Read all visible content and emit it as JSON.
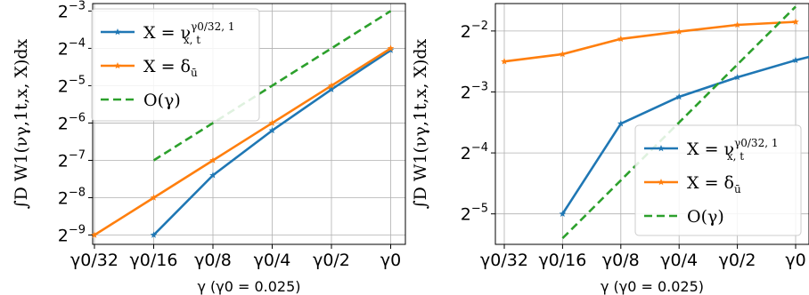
{
  "chart_data": [
    {
      "type": "line",
      "x_categories": [
        "γ0/32",
        "γ0/16",
        "γ0/8",
        "γ0/4",
        "γ0/2",
        "γ0"
      ],
      "xlabel": "γ (γ0 = 0.025)",
      "ylabel": "∫D W1(νγ,1t,x, X)dx",
      "y_scale": "log2",
      "y_tick_exponents": [
        -9,
        -8,
        -7,
        -6,
        -5,
        -4,
        -3
      ],
      "ylim_log2": [
        -9.25,
        -2.8
      ],
      "grid": true,
      "legend_position": "top-left",
      "series": [
        {
          "name": "X = ν^{γ0/32,1}_{x,t}",
          "label_main": "X = ν",
          "label_sup": "γ0/32, 1",
          "label_sub": "x, t",
          "color": "#1f77b4",
          "style": "solid",
          "marker": "star",
          "x_index": [
            1,
            2,
            3,
            4,
            5
          ],
          "log2_values": [
            -9.0,
            -7.4,
            -6.2,
            -5.1,
            -4.05
          ]
        },
        {
          "name": "X = δ_ū",
          "label_main": "X = δ",
          "label_sub": "ū",
          "color": "#ff7f0e",
          "style": "solid",
          "marker": "star",
          "x_index": [
            0,
            1,
            2,
            3,
            4,
            5
          ],
          "log2_values": [
            -9.0,
            -8.0,
            -7.0,
            -6.0,
            -5.0,
            -4.0
          ]
        },
        {
          "name": "O(γ)",
          "label_main": "O(γ)",
          "color": "#2ca02c",
          "style": "dashed",
          "marker": "none",
          "x_index": [
            1,
            5
          ],
          "log2_values": [
            -7.0,
            -3.0
          ]
        }
      ]
    },
    {
      "type": "line",
      "x_categories": [
        "γ0/32",
        "γ0/16",
        "γ0/8",
        "γ0/4",
        "γ0/2",
        "γ0"
      ],
      "xlabel": "γ (γ0 = 0.025)",
      "ylabel": "∫D W1(νγ,1t,x, X)dx",
      "y_scale": "log2",
      "y_tick_exponents": [
        -5,
        -4,
        -3,
        -2
      ],
      "ylim_log2": [
        -5.5,
        -1.55
      ],
      "grid": true,
      "legend_position": "bottom-right",
      "series": [
        {
          "name": "X = ν^{γ0/32,1}_{x,t}",
          "label_main": "X = ν",
          "label_sup": "γ0/32, 1",
          "label_sub": "x, t",
          "color": "#1f77b4",
          "style": "solid",
          "marker": "star",
          "x_index": [
            1,
            2,
            3,
            4,
            5,
            6
          ],
          "log2_values": [
            -5.0,
            -3.52,
            -3.08,
            -2.76,
            -2.48,
            -2.24
          ]
        },
        {
          "name": "X = δ_ū",
          "label_main": "X = δ",
          "label_sub": "ū",
          "color": "#ff7f0e",
          "style": "solid",
          "marker": "star",
          "x_index": [
            0,
            1,
            2,
            3,
            4,
            5
          ],
          "log2_values": [
            -2.5,
            -2.38,
            -2.13,
            -2.01,
            -1.9,
            -1.85
          ]
        },
        {
          "name": "O(γ)",
          "label_main": "O(γ)",
          "color": "#2ca02c",
          "style": "dashed",
          "marker": "none",
          "x_index": [
            1,
            5
          ],
          "log2_values": [
            -5.4,
            -1.6
          ]
        }
      ]
    }
  ]
}
